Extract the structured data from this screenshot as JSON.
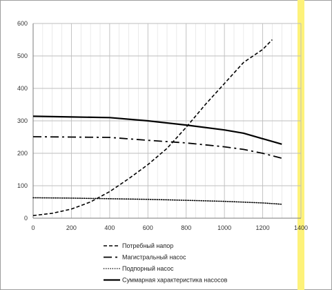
{
  "chart_data": {
    "type": "line",
    "xlim": [
      0,
      1400
    ],
    "ylim": [
      0,
      600
    ],
    "x_ticks": [
      "0",
      "200",
      "400",
      "600",
      "800",
      "1000",
      "1200",
      "1400"
    ],
    "y_ticks": [
      "0",
      "100",
      "200",
      "300",
      "400",
      "500",
      "600"
    ],
    "grid": true,
    "legend_position": "bottom",
    "series": [
      {
        "name": "Потребный напор",
        "style": "dashed",
        "color": "#000000",
        "x": [
          0,
          100,
          200,
          300,
          400,
          500,
          600,
          700,
          800,
          900,
          1000,
          1100,
          1200,
          1250
        ],
        "y": [
          8,
          15,
          28,
          50,
          82,
          122,
          165,
          215,
          280,
          350,
          415,
          480,
          520,
          550
        ]
      },
      {
        "name": "Магистральный насос",
        "style": "dashdot",
        "color": "#000000",
        "x": [
          0,
          200,
          400,
          600,
          800,
          1000,
          1100,
          1200,
          1300
        ],
        "y": [
          251,
          250,
          249,
          240,
          232,
          220,
          212,
          200,
          185
        ]
      },
      {
        "name": "Подпорный насос",
        "style": "dotted",
        "color": "#000000",
        "x": [
          0,
          200,
          400,
          600,
          800,
          1000,
          1200,
          1300
        ],
        "y": [
          63,
          62,
          60,
          58,
          55,
          52,
          47,
          43
        ]
      },
      {
        "name": "Суммарная характеристика насосов",
        "style": "solid",
        "color": "#000000",
        "x": [
          0,
          200,
          400,
          600,
          800,
          1000,
          1100,
          1200,
          1300
        ],
        "y": [
          314,
          312,
          310,
          300,
          287,
          272,
          262,
          245,
          228
        ]
      }
    ]
  }
}
